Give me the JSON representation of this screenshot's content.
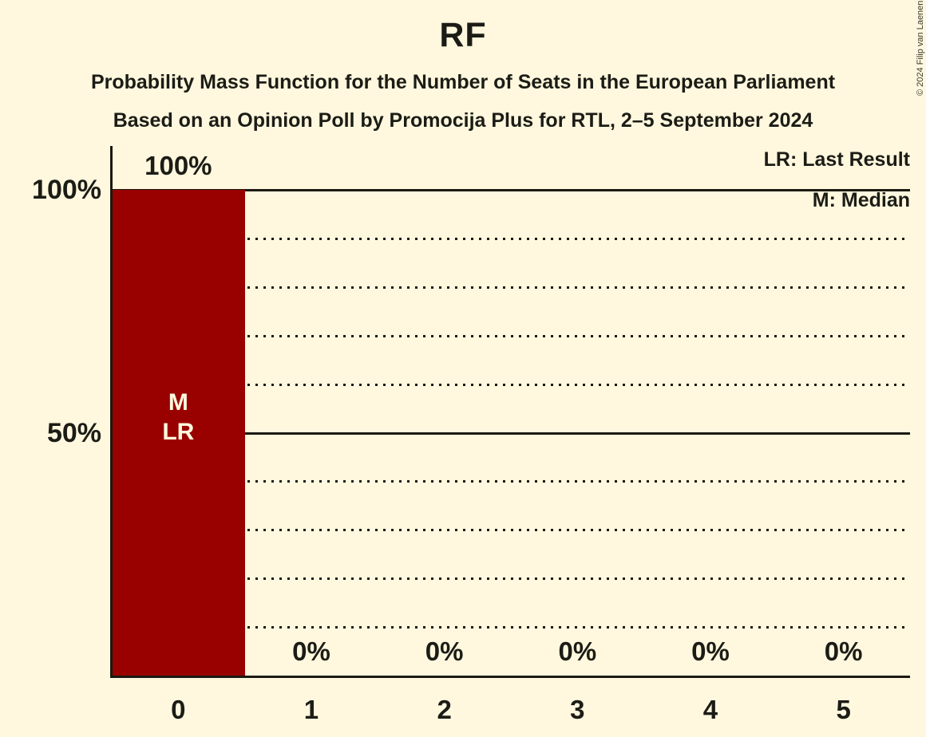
{
  "page": {
    "background_color": "#FFF8DE",
    "copyright": "© 2024 Filip van Laenen"
  },
  "header": {
    "title": "RF",
    "subtitle_line1": "Probability Mass Function for the Number of Seats in the European Parliament",
    "subtitle_line2": "Based on an Opinion Poll by Promocija Plus for RTL, 2–5 September 2024"
  },
  "legend": {
    "last_result_label": "LR: Last Result",
    "median_label": "M: Median"
  },
  "chart_data": {
    "type": "bar",
    "title": "RF",
    "categories": [
      "0",
      "1",
      "2",
      "3",
      "4",
      "5"
    ],
    "values": [
      100,
      0,
      0,
      0,
      0,
      0
    ],
    "bar_labels": [
      "100%",
      "0%",
      "0%",
      "0%",
      "0%",
      "0%"
    ],
    "ylim": [
      0,
      100
    ],
    "yticks": [
      {
        "value": 100,
        "label": "100%"
      },
      {
        "value": 50,
        "label": "50%"
      }
    ],
    "gridlines": {
      "solid": [
        100,
        50
      ],
      "dotted": [
        90,
        80,
        70,
        60,
        40,
        30,
        20,
        10
      ]
    },
    "annotations": [
      {
        "category": "0",
        "lines": [
          "M",
          "LR"
        ]
      }
    ],
    "legend_position": "top-right",
    "colors": {
      "bar": "#990000",
      "bar_label_text": "#FFF8DE",
      "line": "#1A1A12",
      "text": "#1C1C16",
      "background": "#FFF8DE"
    }
  }
}
